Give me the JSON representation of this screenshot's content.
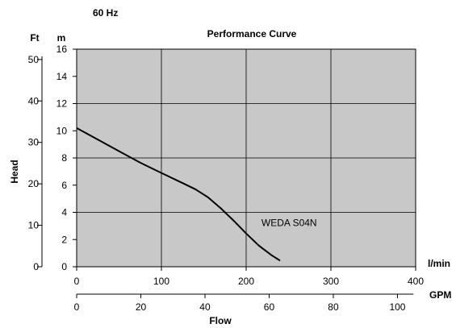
{
  "header": {
    "frequency": "60 Hz"
  },
  "chart_data": {
    "type": "line",
    "title": "Performance Curve",
    "ylabel": "Head",
    "xlabel": "Flow",
    "x_units": {
      "primary": "l/min",
      "secondary": "GPM"
    },
    "y_units": {
      "primary": "m",
      "secondary": "Ft"
    },
    "xlim": [
      0,
      400
    ],
    "ylim": [
      0,
      16
    ],
    "grid": true,
    "colors": {
      "plot_background": "#c8c8c8",
      "curve": "#000000",
      "grid": "#000000"
    },
    "x_ticks_lpm": [
      "0",
      "100",
      "200",
      "300",
      "400"
    ],
    "x_ticks_gpm": [
      "0",
      "20",
      "40",
      "60",
      "80",
      "100"
    ],
    "y_ticks_m": [
      "0",
      "2",
      "4",
      "6",
      "8",
      "10",
      "12",
      "14",
      "16"
    ],
    "y_ticks_ft": [
      "0",
      "10",
      "20",
      "30",
      "40",
      "50"
    ],
    "series": [
      {
        "name": "WEDA S04N",
        "x": [
          0,
          25,
          50,
          75,
          100,
          125,
          140,
          155,
          170,
          185,
          200,
          215,
          230,
          240
        ],
        "y": [
          10.2,
          9.35,
          8.5,
          7.65,
          6.9,
          6.15,
          5.7,
          5.1,
          4.3,
          3.4,
          2.45,
          1.55,
          0.85,
          0.45
        ]
      }
    ]
  }
}
